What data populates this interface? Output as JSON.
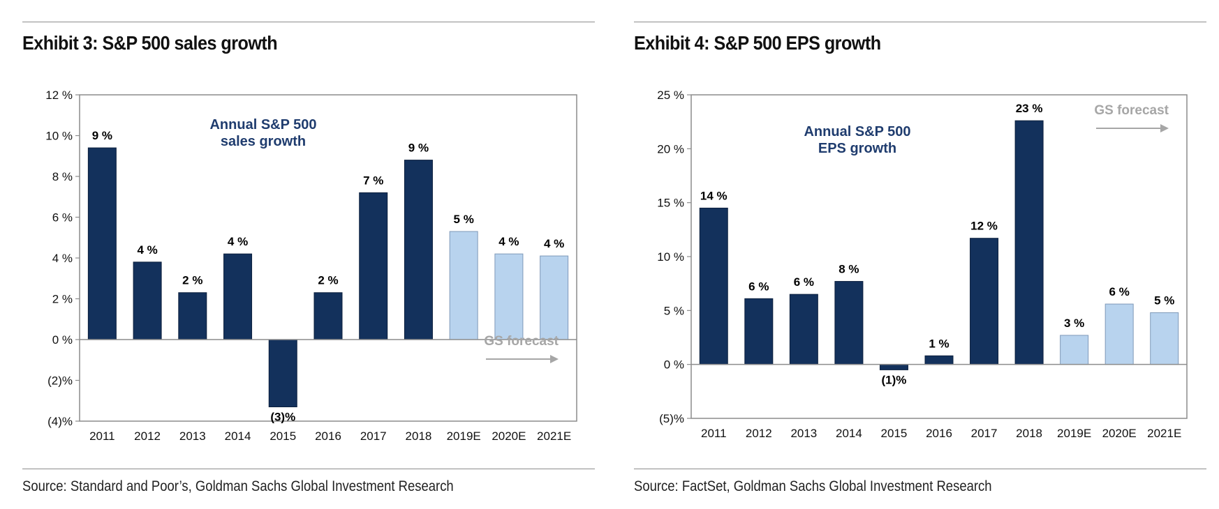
{
  "exhibits": [
    {
      "title": "Exhibit 3: S&P 500 sales growth",
      "source": "Source: Standard and Poor’s, Goldman Sachs Global Investment Research",
      "chart_data": {
        "type": "bar",
        "categories": [
          "2011",
          "2012",
          "2013",
          "2014",
          "2015",
          "2016",
          "2017",
          "2018",
          "2019E",
          "2020E",
          "2021E"
        ],
        "values": [
          9.4,
          3.8,
          2.3,
          4.2,
          -3.3,
          2.3,
          7.2,
          8.8,
          5.3,
          4.2,
          4.1
        ],
        "data_labels": [
          "9 %",
          "4 %",
          "2 %",
          "4 %",
          "(3)%",
          "2 %",
          "7 %",
          "9 %",
          "5 %",
          "4 %",
          "4 %"
        ],
        "forecast_from_index": 8,
        "ylim": [
          -4,
          12
        ],
        "yticks": [
          12,
          10,
          8,
          6,
          4,
          2,
          0,
          -2,
          -4
        ],
        "ytick_labels": [
          "12 %",
          "10 %",
          "8 %",
          "6 %",
          "4 %",
          "2 %",
          "0 %",
          "(2)%",
          "(4)%"
        ],
        "annotation": [
          "Annual S&P 500",
          "sales growth"
        ],
        "forecast_label": "GS forecast",
        "forecast_label_placement": "bottom-right",
        "grid": false,
        "colors": {
          "actual": "#13315c",
          "forecast": "#b8d3ee",
          "annotation": "#1f3c6e",
          "forecast_label": "#a6a6a6"
        }
      }
    },
    {
      "title": "Exhibit 4: S&P 500 EPS growth",
      "source": "Source: FactSet, Goldman Sachs Global Investment Research",
      "chart_data": {
        "type": "bar",
        "categories": [
          "2011",
          "2012",
          "2013",
          "2014",
          "2015",
          "2016",
          "2017",
          "2018",
          "2019E",
          "2020E",
          "2021E"
        ],
        "values": [
          14.5,
          6.1,
          6.5,
          7.7,
          -0.5,
          0.8,
          11.7,
          22.6,
          2.7,
          5.6,
          4.8
        ],
        "data_labels": [
          "14 %",
          "6 %",
          "6 %",
          "8 %",
          "(1)%",
          "1 %",
          "12 %",
          "23 %",
          "3 %",
          "6 %",
          "5 %"
        ],
        "forecast_from_index": 8,
        "ylim": [
          -5,
          25
        ],
        "yticks": [
          25,
          20,
          15,
          10,
          5,
          0,
          -5
        ],
        "ytick_labels": [
          "25 %",
          "20 %",
          "15 %",
          "10 %",
          "5 %",
          "0 %",
          "(5)%"
        ],
        "annotation": [
          "Annual S&P 500",
          "EPS growth"
        ],
        "forecast_label": "GS forecast",
        "forecast_label_placement": "top-right",
        "grid": false,
        "colors": {
          "actual": "#13315c",
          "forecast": "#b8d3ee",
          "annotation": "#1f3c6e",
          "forecast_label": "#a6a6a6"
        }
      }
    }
  ]
}
